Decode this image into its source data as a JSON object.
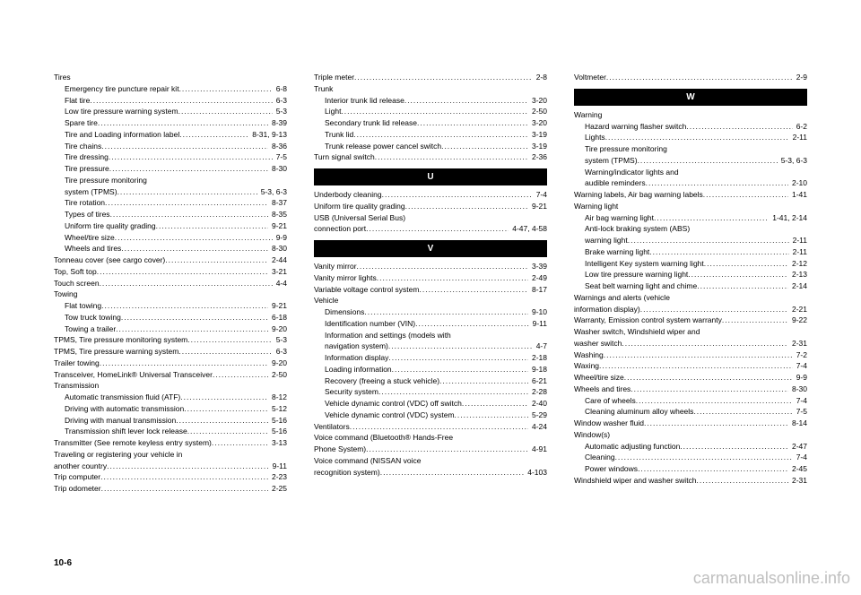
{
  "page_number": "10-6",
  "watermark": "carmanualsonline.info",
  "columns": [
    {
      "groups": [
        {
          "header": "Tires",
          "entries": [
            {
              "label": "Emergency tire puncture repair kit",
              "page": "6-8",
              "indent": true
            },
            {
              "label": "Flat tire",
              "page": "6-3",
              "indent": true
            },
            {
              "label": "Low tire pressure warning system",
              "page": "5-3",
              "indent": true
            },
            {
              "label": "Spare tire",
              "page": "8-39",
              "indent": true
            },
            {
              "label": "Tire and Loading information label",
              "page": "8-31, 9-13",
              "indent": true
            },
            {
              "label": "Tire chains",
              "page": "8-36",
              "indent": true
            },
            {
              "label": "Tire dressing",
              "page": "7-5",
              "indent": true
            },
            {
              "label": "Tire pressure",
              "page": "8-30",
              "indent": true
            },
            {
              "label": "Tire pressure monitoring",
              "page": "",
              "indent": true,
              "nodots": true
            },
            {
              "label": "system (TPMS)",
              "page": "5-3, 6-3",
              "indent": true
            },
            {
              "label": "Tire rotation",
              "page": "8-37",
              "indent": true
            },
            {
              "label": "Types of tires",
              "page": "8-35",
              "indent": true
            },
            {
              "label": "Uniform tire quality grading",
              "page": "9-21",
              "indent": true
            },
            {
              "label": "Wheel/tire size",
              "page": "9-9",
              "indent": true
            },
            {
              "label": "Wheels and tires",
              "page": "8-30",
              "indent": true
            }
          ]
        },
        {
          "entries": [
            {
              "label": "Tonneau cover (see cargo cover)",
              "page": "2-44"
            },
            {
              "label": "Top, Soft top",
              "page": "3-21"
            },
            {
              "label": "Touch screen",
              "page": "4-4"
            }
          ]
        },
        {
          "header": "Towing",
          "entries": [
            {
              "label": "Flat towing",
              "page": "9-21",
              "indent": true
            },
            {
              "label": "Tow truck towing",
              "page": "6-18",
              "indent": true
            },
            {
              "label": "Towing a trailer",
              "page": "9-20",
              "indent": true
            }
          ]
        },
        {
          "entries": [
            {
              "label": "TPMS, Tire pressure monitoring system",
              "page": "5-3"
            },
            {
              "label": "TPMS, Tire pressure warning system",
              "page": "6-3"
            },
            {
              "label": "Trailer towing",
              "page": "9-20"
            },
            {
              "label": "Transceiver, HomeLink® Universal Transceiver",
              "page": "2-50"
            }
          ]
        },
        {
          "header": "Transmission",
          "entries": [
            {
              "label": "Automatic transmission fluid (ATF)",
              "page": "8-12",
              "indent": true
            },
            {
              "label": "Driving with automatic transmission",
              "page": "5-12",
              "indent": true
            },
            {
              "label": "Driving with manual transmission",
              "page": "5-16",
              "indent": true
            },
            {
              "label": "Transmission shift lever lock release",
              "page": "5-16",
              "indent": true
            }
          ]
        },
        {
          "entries": [
            {
              "label": "Transmitter (See remote keyless entry system)",
              "page": "3-13"
            },
            {
              "label": "Traveling or registering your vehicle in",
              "page": "",
              "nodots": true
            },
            {
              "label": "another country",
              "page": "9-11"
            },
            {
              "label": "Trip computer",
              "page": "2-23"
            },
            {
              "label": "Trip odometer",
              "page": "2-25"
            }
          ]
        }
      ]
    },
    {
      "groups": [
        {
          "entries": [
            {
              "label": "Triple meter",
              "page": "2-8"
            }
          ]
        },
        {
          "header": "Trunk",
          "entries": [
            {
              "label": "Interior trunk lid release",
              "page": "3-20",
              "indent": true
            },
            {
              "label": "Light",
              "page": "2-50",
              "indent": true
            },
            {
              "label": "Secondary trunk lid release",
              "page": "3-20",
              "indent": true
            },
            {
              "label": "Trunk lid",
              "page": "3-19",
              "indent": true
            },
            {
              "label": "Trunk release power cancel switch",
              "page": "3-19",
              "indent": true
            }
          ]
        },
        {
          "entries": [
            {
              "label": "Turn signal switch",
              "page": "2-36"
            }
          ]
        },
        {
          "section": "U",
          "entries": [
            {
              "label": "Underbody cleaning",
              "page": "7-4"
            },
            {
              "label": "Uniform tire quality grading",
              "page": "9-21"
            },
            {
              "label": "USB (Universal Serial Bus)",
              "page": "",
              "nodots": true
            },
            {
              "label": "connection port",
              "page": "4-47, 4-58"
            }
          ]
        },
        {
          "section": "V",
          "entries": [
            {
              "label": "Vanity mirror",
              "page": "3-39"
            },
            {
              "label": "Vanity mirror lights",
              "page": "2-49"
            },
            {
              "label": "Variable voltage control system",
              "page": "8-17"
            }
          ]
        },
        {
          "header": "Vehicle",
          "entries": [
            {
              "label": "Dimensions",
              "page": "9-10",
              "indent": true
            },
            {
              "label": "Identification number (VIN)",
              "page": "9-11",
              "indent": true
            },
            {
              "label": "Information and settings (models with",
              "page": "",
              "indent": true,
              "nodots": true
            },
            {
              "label": "navigation system)",
              "page": "4-7",
              "indent": true
            },
            {
              "label": "Information display",
              "page": "2-18",
              "indent": true
            },
            {
              "label": "Loading information",
              "page": "9-18",
              "indent": true
            },
            {
              "label": "Recovery (freeing a stuck vehicle)",
              "page": "6-21",
              "indent": true
            },
            {
              "label": "Security system",
              "page": "2-28",
              "indent": true
            },
            {
              "label": "Vehicle dynamic control (VDC) off switch",
              "page": "2-40",
              "indent": true
            },
            {
              "label": "Vehicle dynamic control (VDC) system",
              "page": "5-29",
              "indent": true
            }
          ]
        },
        {
          "entries": [
            {
              "label": "Ventilators",
              "page": "4-24"
            },
            {
              "label": "Voice command (Bluetooth® Hands-Free",
              "page": "",
              "nodots": true
            },
            {
              "label": "Phone System)",
              "page": "4-91"
            },
            {
              "label": "Voice command (NISSAN voice",
              "page": "",
              "nodots": true
            },
            {
              "label": "recognition system)",
              "page": "4-103"
            }
          ]
        }
      ]
    },
    {
      "groups": [
        {
          "entries": [
            {
              "label": "Voltmeter",
              "page": "2-9"
            }
          ]
        },
        {
          "section": "W",
          "header": "Warning",
          "entries": [
            {
              "label": "Hazard warning flasher switch",
              "page": "6-2",
              "indent": true
            },
            {
              "label": "Lights",
              "page": "2-11",
              "indent": true
            },
            {
              "label": "Tire pressure monitoring",
              "page": "",
              "indent": true,
              "nodots": true
            },
            {
              "label": "system (TPMS)",
              "page": "5-3, 6-3",
              "indent": true
            },
            {
              "label": "Warning/indicator lights and",
              "page": "",
              "indent": true,
              "nodots": true
            },
            {
              "label": "audible reminders",
              "page": "2-10",
              "indent": true
            }
          ]
        },
        {
          "entries": [
            {
              "label": "Warning labels, Air bag warning labels",
              "page": "1-41"
            }
          ]
        },
        {
          "header": "Warning light",
          "entries": [
            {
              "label": "Air bag warning light",
              "page": "1-41, 2-14",
              "indent": true
            },
            {
              "label": "Anti-lock braking system (ABS)",
              "page": "",
              "indent": true,
              "nodots": true
            },
            {
              "label": "warning light",
              "page": "2-11",
              "indent": true
            },
            {
              "label": "Brake warning light",
              "page": "2-11",
              "indent": true
            },
            {
              "label": "Intelligent Key system warning light",
              "page": "2-12",
              "indent": true
            },
            {
              "label": "Low tire pressure warning light",
              "page": "2-13",
              "indent": true
            },
            {
              "label": "Seat belt warning light and chime",
              "page": "2-14",
              "indent": true
            }
          ]
        },
        {
          "entries": [
            {
              "label": "Warnings and alerts (vehicle",
              "page": "",
              "nodots": true
            },
            {
              "label": "information display)",
              "page": "2-21"
            },
            {
              "label": "Warranty, Emission control system warranty",
              "page": "9-22"
            },
            {
              "label": "Washer switch, Windshield wiper and",
              "page": "",
              "nodots": true
            },
            {
              "label": "washer switch",
              "page": "2-31"
            },
            {
              "label": "Washing",
              "page": "7-2"
            },
            {
              "label": "Waxing",
              "page": "7-4"
            },
            {
              "label": "Wheel/tire size",
              "page": "9-9"
            },
            {
              "label": "Wheels and tires",
              "page": "8-30"
            },
            {
              "label": "Care of wheels",
              "page": "7-4",
              "indent": true
            },
            {
              "label": "Cleaning aluminum alloy wheels",
              "page": "7-5",
              "indent": true
            }
          ]
        },
        {
          "entries": [
            {
              "label": "Window washer fluid",
              "page": "8-14"
            }
          ]
        },
        {
          "header": "Window(s)",
          "entries": [
            {
              "label": "Automatic adjusting function",
              "page": "2-47",
              "indent": true
            },
            {
              "label": "Cleaning",
              "page": "7-4",
              "indent": true
            },
            {
              "label": "Power windows",
              "page": "2-45",
              "indent": true
            }
          ]
        },
        {
          "entries": [
            {
              "label": "Windshield wiper and washer switch",
              "page": "2-31"
            }
          ]
        }
      ]
    }
  ]
}
